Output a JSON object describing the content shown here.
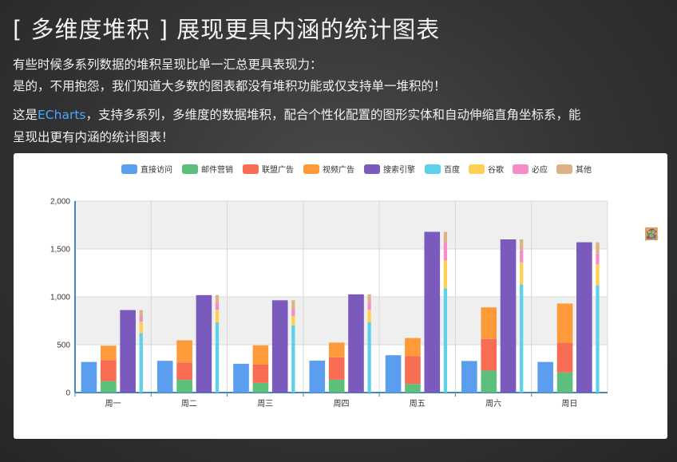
{
  "header": {
    "title": "[ 多维度堆积 ] 展现更具内涵的统计图表",
    "line1": "有些时候多系列数据的堆积呈现比单一汇总更具表现力：",
    "line2": "是的，不用抱怨，我们知道大多数的图表都没有堆积功能或仅支持单一堆积的！",
    "line3_prefix": "这是",
    "brand": "ECharts",
    "line3_suffix": "，支持多系列，多维度的数据堆积，配合个性化配置的图形实体和自动伸缩直角坐标系，能",
    "line4": "呈现出更有内涵的统计图表！"
  },
  "toolbox": [
    {
      "name": "mark-icon",
      "color": "#4a90d9"
    },
    {
      "name": "mark-undo-icon",
      "color": "#cccccc"
    },
    {
      "name": "mark-clear-icon",
      "color": "#cccccc"
    },
    {
      "name": "data-view-icon",
      "color": "#e5993a"
    },
    {
      "name": "line-chart-icon",
      "color": "#3a7fd0"
    },
    {
      "name": "bar-chart-icon",
      "color": "#3aa843"
    },
    {
      "name": "restore-icon",
      "color": "#6b4fb8"
    },
    {
      "name": "save-image-icon",
      "color": "#e5993a"
    }
  ],
  "chart_data": {
    "type": "bar",
    "categories": [
      "周一",
      "周二",
      "周三",
      "周四",
      "周五",
      "周六",
      "周日"
    ],
    "ylim": [
      0,
      2000
    ],
    "yticks": [
      "0",
      "500",
      "1,000",
      "1,500",
      "2,000"
    ],
    "ytick_values": [
      0,
      500,
      1000,
      1500,
      2000
    ],
    "legend": [
      "直接访问",
      "邮件营销",
      "联盟广告",
      "视频广告",
      "搜索引擎",
      "百度",
      "谷歌",
      "必应",
      "其他"
    ],
    "series": [
      {
        "name": "直接访问",
        "stack": "a",
        "color": "#5b9ef0",
        "values": [
          320,
          332,
          301,
          334,
          390,
          330,
          320
        ]
      },
      {
        "name": "邮件营销",
        "stack": "b",
        "color": "#5cbf7b",
        "values": [
          120,
          132,
          101,
          134,
          90,
          230,
          210
        ]
      },
      {
        "name": "联盟广告",
        "stack": "b",
        "color": "#f76c52",
        "values": [
          220,
          182,
          191,
          234,
          290,
          330,
          310
        ]
      },
      {
        "name": "视频广告",
        "stack": "b",
        "color": "#ff9a3b",
        "values": [
          150,
          232,
          201,
          154,
          190,
          330,
          410
        ]
      },
      {
        "name": "搜索引擎",
        "stack": "c",
        "color": "#7a5bbd",
        "values": [
          862,
          1018,
          964,
          1026,
          1679,
          1600,
          1570
        ]
      },
      {
        "name": "百度",
        "stack": "d",
        "color": "#5ed1ea",
        "values": [
          620,
          732,
          701,
          734,
          1090,
          1130,
          1120
        ]
      },
      {
        "name": "谷歌",
        "stack": "d",
        "color": "#fcd050",
        "values": [
          120,
          132,
          101,
          134,
          290,
          230,
          220
        ]
      },
      {
        "name": "必应",
        "stack": "d",
        "color": "#f78bc9",
        "values": [
          60,
          72,
          71,
          74,
          190,
          130,
          110
        ]
      },
      {
        "name": "其他",
        "stack": "d",
        "color": "#dcb387",
        "values": [
          62,
          82,
          91,
          84,
          109,
          110,
          120
        ]
      }
    ]
  }
}
